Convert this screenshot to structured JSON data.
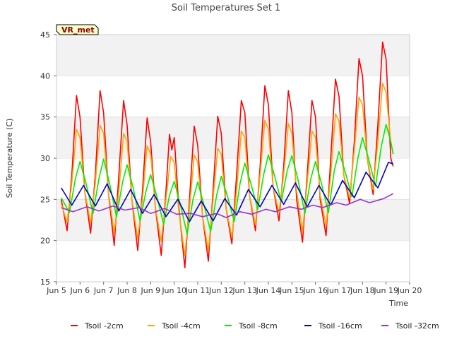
{
  "chart_data": {
    "type": "line",
    "title": "Soil Temperatures Set 1",
    "xlabel": "Time",
    "ylabel": "Soil Temperature (C)",
    "xlim": [
      5,
      20
    ],
    "ylim": [
      15,
      45
    ],
    "x_ticks": [
      5,
      6,
      7,
      8,
      9,
      10,
      11,
      12,
      13,
      14,
      15,
      16,
      17,
      18,
      19,
      20
    ],
    "x_tick_labels": [
      "Jun 5",
      "Jun 6",
      "Jun 7",
      "Jun 8",
      "Jun 9",
      "Jun 10",
      "Jun 11",
      "Jun 12",
      "Jun 13",
      "Jun 14",
      "Jun 15",
      "Jun 16",
      "Jun 17",
      "Jun 18",
      "Jun 19",
      "Jun 20"
    ],
    "y_ticks": [
      15,
      20,
      25,
      30,
      35,
      40,
      45
    ],
    "y_tick_labels": [
      "15",
      "20",
      "25",
      "30",
      "35",
      "40",
      "45"
    ],
    "grid": "horizontal bands",
    "legend": "bottom",
    "annotation": "VR_met",
    "colors": {
      "band": "#f2f2f2",
      "annotation_fill": "#ffffcc",
      "annotation_text": "#8b0000"
    },
    "series": [
      {
        "name": "Tsoil -2cm",
        "color": "#ff0000",
        "points": [
          [
            5.2,
            25.0
          ],
          [
            5.45,
            21.2
          ],
          [
            5.65,
            28.0
          ],
          [
            5.85,
            37.6
          ],
          [
            6.0,
            35.0
          ],
          [
            6.2,
            26.0
          ],
          [
            6.45,
            20.9
          ],
          [
            6.65,
            28.0
          ],
          [
            6.85,
            38.2
          ],
          [
            7.0,
            35.5
          ],
          [
            7.2,
            26.0
          ],
          [
            7.45,
            19.4
          ],
          [
            7.65,
            28.0
          ],
          [
            7.85,
            37.0
          ],
          [
            8.0,
            34.0
          ],
          [
            8.2,
            25.0
          ],
          [
            8.45,
            18.8
          ],
          [
            8.65,
            26.0
          ],
          [
            8.85,
            34.9
          ],
          [
            9.0,
            32.0
          ],
          [
            9.2,
            24.0
          ],
          [
            9.45,
            18.2
          ],
          [
            9.65,
            26.0
          ],
          [
            9.8,
            32.9
          ],
          [
            9.9,
            31.0
          ],
          [
            10.0,
            32.5
          ],
          [
            10.2,
            24.0
          ],
          [
            10.45,
            16.7
          ],
          [
            10.65,
            25.0
          ],
          [
            10.85,
            33.9
          ],
          [
            11.0,
            31.5
          ],
          [
            11.2,
            23.0
          ],
          [
            11.45,
            17.5
          ],
          [
            11.65,
            26.0
          ],
          [
            11.85,
            35.1
          ],
          [
            12.0,
            33.0
          ],
          [
            12.2,
            24.0
          ],
          [
            12.45,
            19.6
          ],
          [
            12.65,
            28.0
          ],
          [
            12.85,
            37.0
          ],
          [
            13.0,
            35.5
          ],
          [
            13.2,
            25.5
          ],
          [
            13.45,
            21.2
          ],
          [
            13.65,
            29.0
          ],
          [
            13.85,
            38.8
          ],
          [
            14.0,
            36.5
          ],
          [
            14.2,
            26.5
          ],
          [
            14.45,
            22.4
          ],
          [
            14.65,
            29.0
          ],
          [
            14.85,
            38.2
          ],
          [
            15.0,
            35.5
          ],
          [
            15.2,
            25.0
          ],
          [
            15.45,
            19.8
          ],
          [
            15.65,
            28.0
          ],
          [
            15.85,
            37.0
          ],
          [
            16.0,
            35.0
          ],
          [
            16.2,
            25.0
          ],
          [
            16.45,
            20.6
          ],
          [
            16.65,
            30.0
          ],
          [
            16.85,
            39.6
          ],
          [
            17.0,
            37.5
          ],
          [
            17.2,
            28.0
          ],
          [
            17.45,
            24.5
          ],
          [
            17.65,
            32.0
          ],
          [
            17.85,
            42.1
          ],
          [
            18.0,
            40.0
          ],
          [
            18.2,
            30.0
          ],
          [
            18.45,
            25.6
          ],
          [
            18.65,
            34.0
          ],
          [
            18.85,
            44.1
          ],
          [
            19.0,
            42.0
          ],
          [
            19.2,
            30.0
          ],
          [
            19.3,
            29.0
          ]
        ]
      },
      {
        "name": "Tsoil -4cm",
        "color": "#ffa500",
        "points": [
          [
            5.2,
            24.5
          ],
          [
            5.45,
            22.2
          ],
          [
            5.65,
            27.0
          ],
          [
            5.85,
            33.5
          ],
          [
            6.0,
            32.5
          ],
          [
            6.2,
            26.0
          ],
          [
            6.45,
            22.1
          ],
          [
            6.65,
            27.0
          ],
          [
            6.85,
            34.0
          ],
          [
            7.0,
            33.0
          ],
          [
            7.2,
            26.0
          ],
          [
            7.45,
            20.9
          ],
          [
            7.65,
            26.0
          ],
          [
            7.85,
            33.0
          ],
          [
            8.0,
            32.0
          ],
          [
            8.2,
            25.0
          ],
          [
            8.45,
            20.2
          ],
          [
            8.65,
            25.0
          ],
          [
            8.85,
            31.5
          ],
          [
            9.0,
            30.5
          ],
          [
            9.2,
            24.0
          ],
          [
            9.45,
            19.9
          ],
          [
            9.65,
            25.0
          ],
          [
            9.85,
            30.2
          ],
          [
            10.0,
            29.5
          ],
          [
            10.2,
            23.5
          ],
          [
            10.45,
            18.2
          ],
          [
            10.65,
            24.0
          ],
          [
            10.85,
            30.4
          ],
          [
            11.0,
            29.5
          ],
          [
            11.2,
            23.0
          ],
          [
            11.45,
            18.8
          ],
          [
            11.65,
            25.0
          ],
          [
            11.85,
            31.2
          ],
          [
            12.0,
            30.5
          ],
          [
            12.2,
            24.0
          ],
          [
            12.45,
            20.4
          ],
          [
            12.65,
            26.0
          ],
          [
            12.85,
            33.3
          ],
          [
            13.0,
            32.5
          ],
          [
            13.2,
            25.5
          ],
          [
            13.45,
            21.9
          ],
          [
            13.65,
            28.0
          ],
          [
            13.85,
            34.6
          ],
          [
            14.0,
            33.5
          ],
          [
            14.2,
            26.5
          ],
          [
            14.45,
            23.4
          ],
          [
            14.65,
            28.0
          ],
          [
            14.85,
            34.2
          ],
          [
            15.0,
            33.0
          ],
          [
            15.2,
            26.0
          ],
          [
            15.45,
            21.1
          ],
          [
            15.65,
            27.0
          ],
          [
            15.85,
            33.3
          ],
          [
            16.0,
            32.5
          ],
          [
            16.2,
            25.5
          ],
          [
            16.45,
            21.8
          ],
          [
            16.65,
            28.0
          ],
          [
            16.85,
            35.4
          ],
          [
            17.0,
            34.5
          ],
          [
            17.2,
            28.0
          ],
          [
            17.45,
            25.2
          ],
          [
            17.65,
            31.0
          ],
          [
            17.85,
            37.4
          ],
          [
            18.0,
            36.5
          ],
          [
            18.2,
            30.0
          ],
          [
            18.45,
            26.2
          ],
          [
            18.65,
            32.0
          ],
          [
            18.85,
            39.1
          ],
          [
            19.0,
            38.0
          ],
          [
            19.2,
            32.0
          ],
          [
            19.3,
            30.5
          ]
        ]
      },
      {
        "name": "Tsoil -8cm",
        "color": "#00ee00",
        "points": [
          [
            5.2,
            25.2
          ],
          [
            5.55,
            23.4
          ],
          [
            5.8,
            27.5
          ],
          [
            6.0,
            29.6
          ],
          [
            6.25,
            27.0
          ],
          [
            6.55,
            23.3
          ],
          [
            6.8,
            27.5
          ],
          [
            7.0,
            29.9
          ],
          [
            7.25,
            27.0
          ],
          [
            7.55,
            22.9
          ],
          [
            7.8,
            27.0
          ],
          [
            8.0,
            29.2
          ],
          [
            8.25,
            26.5
          ],
          [
            8.55,
            22.4
          ],
          [
            8.8,
            26.0
          ],
          [
            9.0,
            28.0
          ],
          [
            9.25,
            25.5
          ],
          [
            9.55,
            22.0
          ],
          [
            9.8,
            25.5
          ],
          [
            10.0,
            27.2
          ],
          [
            10.25,
            24.5
          ],
          [
            10.55,
            20.8
          ],
          [
            10.8,
            25.0
          ],
          [
            11.0,
            27.1
          ],
          [
            11.25,
            24.5
          ],
          [
            11.55,
            21.1
          ],
          [
            11.8,
            25.5
          ],
          [
            12.0,
            27.8
          ],
          [
            12.25,
            25.5
          ],
          [
            12.55,
            22.3
          ],
          [
            12.8,
            27.0
          ],
          [
            13.0,
            29.4
          ],
          [
            13.25,
            27.0
          ],
          [
            13.55,
            23.8
          ],
          [
            13.8,
            28.0
          ],
          [
            14.0,
            30.4
          ],
          [
            14.25,
            28.0
          ],
          [
            14.55,
            24.7
          ],
          [
            14.8,
            28.5
          ],
          [
            15.0,
            30.3
          ],
          [
            15.25,
            27.5
          ],
          [
            15.55,
            23.3
          ],
          [
            15.8,
            27.5
          ],
          [
            16.0,
            29.6
          ],
          [
            16.25,
            27.0
          ],
          [
            16.55,
            23.4
          ],
          [
            16.8,
            28.5
          ],
          [
            17.0,
            30.8
          ],
          [
            17.25,
            28.5
          ],
          [
            17.55,
            25.3
          ],
          [
            17.8,
            30.0
          ],
          [
            18.0,
            32.5
          ],
          [
            18.25,
            30.0
          ],
          [
            18.55,
            26.6
          ],
          [
            18.8,
            31.5
          ],
          [
            19.0,
            34.1
          ],
          [
            19.2,
            32.0
          ],
          [
            19.3,
            30.5
          ]
        ]
      },
      {
        "name": "Tsoil -16cm",
        "color": "#0000cc",
        "points": [
          [
            5.2,
            26.4
          ],
          [
            5.65,
            24.3
          ],
          [
            6.15,
            26.7
          ],
          [
            6.65,
            24.2
          ],
          [
            7.15,
            26.9
          ],
          [
            7.65,
            23.6
          ],
          [
            8.15,
            26.2
          ],
          [
            8.65,
            23.3
          ],
          [
            9.15,
            25.6
          ],
          [
            9.65,
            22.9
          ],
          [
            10.15,
            25.0
          ],
          [
            10.65,
            22.3
          ],
          [
            11.15,
            24.8
          ],
          [
            11.65,
            22.4
          ],
          [
            12.15,
            25.1
          ],
          [
            12.65,
            23.1
          ],
          [
            13.15,
            26.2
          ],
          [
            13.65,
            24.1
          ],
          [
            14.15,
            26.7
          ],
          [
            14.65,
            24.4
          ],
          [
            15.15,
            27.0
          ],
          [
            15.65,
            24.1
          ],
          [
            16.15,
            26.7
          ],
          [
            16.65,
            24.3
          ],
          [
            17.15,
            27.3
          ],
          [
            17.65,
            25.2
          ],
          [
            18.15,
            28.3
          ],
          [
            18.65,
            26.4
          ],
          [
            19.1,
            29.5
          ],
          [
            19.3,
            29.3
          ]
        ]
      },
      {
        "name": "Tsoil -32cm",
        "color": "#9a32cd",
        "points": [
          [
            5.2,
            24.0
          ],
          [
            5.7,
            23.5
          ],
          [
            6.3,
            24.1
          ],
          [
            6.8,
            23.6
          ],
          [
            7.4,
            24.2
          ],
          [
            7.9,
            23.7
          ],
          [
            8.5,
            24.0
          ],
          [
            9.0,
            23.3
          ],
          [
            9.6,
            23.9
          ],
          [
            10.1,
            23.2
          ],
          [
            10.7,
            23.3
          ],
          [
            11.2,
            22.9
          ],
          [
            11.8,
            23.3
          ],
          [
            12.2,
            22.8
          ],
          [
            12.8,
            23.5
          ],
          [
            13.3,
            23.2
          ],
          [
            13.9,
            23.8
          ],
          [
            14.3,
            23.5
          ],
          [
            14.9,
            24.1
          ],
          [
            15.4,
            23.8
          ],
          [
            15.9,
            24.3
          ],
          [
            16.3,
            24.0
          ],
          [
            16.9,
            24.6
          ],
          [
            17.3,
            24.3
          ],
          [
            17.9,
            25.0
          ],
          [
            18.3,
            24.6
          ],
          [
            18.9,
            25.1
          ],
          [
            19.3,
            25.7
          ]
        ]
      }
    ]
  }
}
